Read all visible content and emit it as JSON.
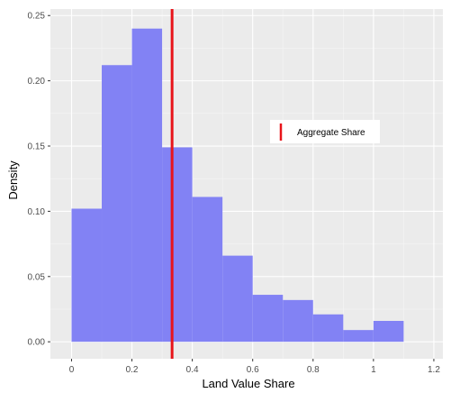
{
  "chart_data": {
    "type": "bar",
    "chart_kind": "histogram",
    "title": "",
    "xlabel": "Land Value Share",
    "ylabel": "Density",
    "xlim": [
      -0.07,
      1.23
    ],
    "ylim": [
      -0.013,
      0.255
    ],
    "x_ticks": [
      0,
      0.2,
      0.4,
      0.6,
      0.8,
      1,
      1.2
    ],
    "x_tick_labels": [
      "0",
      "0.2",
      "0.4",
      "0.6",
      "0.8",
      "1",
      "1.2"
    ],
    "y_ticks": [
      0,
      0.05,
      0.1,
      0.15,
      0.2,
      0.25
    ],
    "y_tick_labels": [
      "0.00",
      "0.05",
      "0.10",
      "0.15",
      "0.20",
      "0.25"
    ],
    "bins": [
      {
        "x0": 0.0,
        "x1": 0.1,
        "density": 0.102
      },
      {
        "x0": 0.1,
        "x1": 0.2,
        "density": 0.212
      },
      {
        "x0": 0.2,
        "x1": 0.3,
        "density": 0.24
      },
      {
        "x0": 0.3,
        "x1": 0.4,
        "density": 0.149
      },
      {
        "x0": 0.4,
        "x1": 0.5,
        "density": 0.111
      },
      {
        "x0": 0.5,
        "x1": 0.6,
        "density": 0.066
      },
      {
        "x0": 0.6,
        "x1": 0.7,
        "density": 0.036
      },
      {
        "x0": 0.7,
        "x1": 0.8,
        "density": 0.032
      },
      {
        "x0": 0.8,
        "x1": 0.9,
        "density": 0.021
      },
      {
        "x0": 0.9,
        "x1": 1.0,
        "density": 0.009
      },
      {
        "x0": 1.0,
        "x1": 1.1,
        "density": 0.016
      }
    ],
    "reference_line": {
      "label": "Aggregate Share",
      "x": 0.333,
      "orientation": "vertical",
      "color": "#e8141a"
    },
    "legend": {
      "entries": [
        "Aggregate Share"
      ],
      "position": "inside-right"
    },
    "bar_color": "#8080f4",
    "panel_background": "#ebebeb",
    "grid": true
  }
}
